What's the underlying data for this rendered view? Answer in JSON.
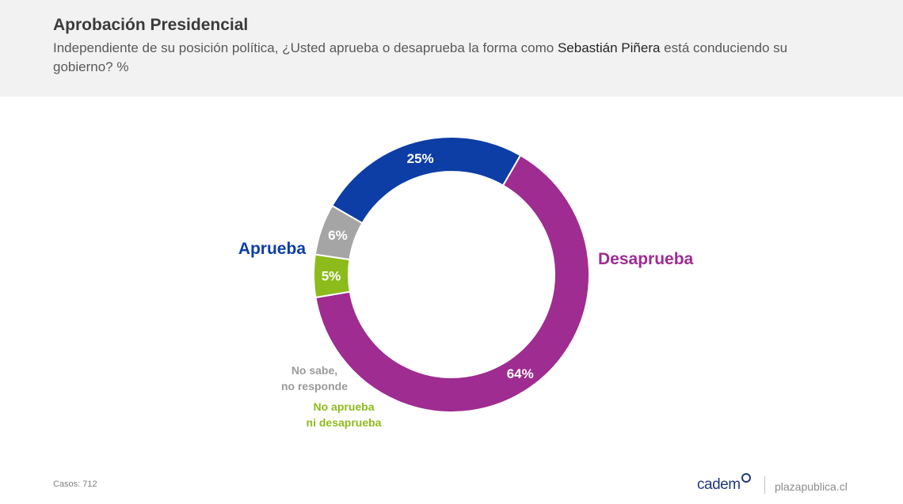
{
  "header": {
    "title": "Aprobación Presidencial",
    "subtitle_pre": "Independiente de su posición política, ¿Usted aprueba o desaprueba la forma como ",
    "subtitle_name": "Sebastián Piñera",
    "subtitle_post": " está conduciendo su gobierno? %"
  },
  "chart_data": {
    "type": "pie",
    "donut": true,
    "unit": "%",
    "slices": [
      {
        "name": "Desaprueba",
        "name_lines": [
          "Desaprueba"
        ],
        "value": 64,
        "label": "64%",
        "color": "#9e2c91"
      },
      {
        "name": "No aprueba ni desaprueba",
        "name_lines": [
          "No aprueba",
          "ni desaprueba"
        ],
        "value": 5,
        "label": "5%",
        "color": "#8dbb1b"
      },
      {
        "name": "No sabe, no responde",
        "name_lines": [
          "No sabe,",
          "no responde"
        ],
        "value": 6,
        "label": "6%",
        "color": "#a5a5a5"
      },
      {
        "name": "Aprueba",
        "name_lines": [
          "Aprueba"
        ],
        "value": 25,
        "label": "25%",
        "color": "#0d3ea6"
      }
    ]
  },
  "footer": {
    "casos": "Casos: 712",
    "brand": "cadem",
    "site": "plazapublica.cl"
  }
}
